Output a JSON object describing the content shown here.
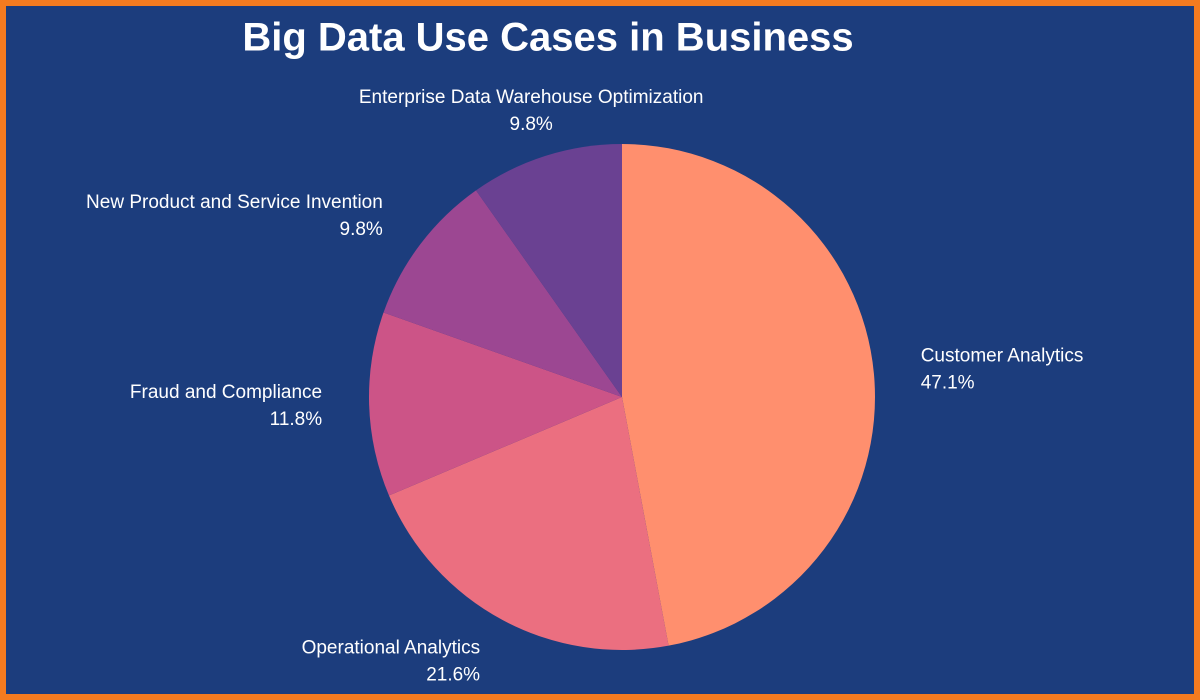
{
  "chart_data": {
    "type": "pie",
    "title": "Big Data Use Cases in Business",
    "categories": [
      "Customer Analytics",
      "Operational Analytics",
      "Fraud and Compliance",
      "New Product and Service Invention",
      "Enterprise Data Warehouse Optimization"
    ],
    "values": [
      47.1,
      21.6,
      11.8,
      9.8,
      9.8
    ],
    "value_labels": [
      "47.1%",
      "21.6%",
      "11.8%",
      "9.8%",
      "9.8%"
    ],
    "colors": [
      "#ff8f6e",
      "#eb6f80",
      "#cc5487",
      "#9c4792",
      "#6a4192"
    ]
  }
}
